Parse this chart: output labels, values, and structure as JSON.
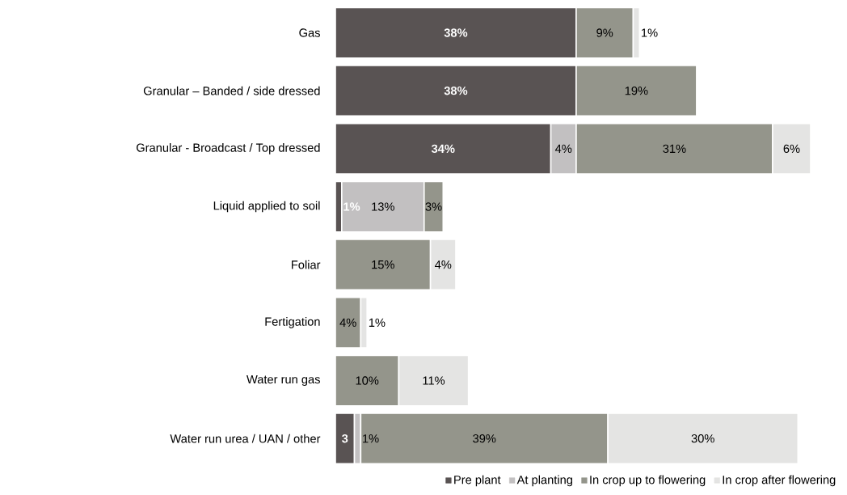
{
  "chart_data": {
    "type": "bar",
    "orientation": "horizontal",
    "stacked": true,
    "legend": "bottom",
    "categories": [
      "Gas",
      "Granular – Banded / side dressed",
      "Granular - Broadcast / Top dressed",
      "Liquid applied to soil",
      "Foliar",
      "Fertigation",
      "Water run gas",
      "Water run urea / UAN / other"
    ],
    "series": [
      {
        "name": "Pre plant",
        "color": "#595353",
        "values": [
          38,
          38,
          34,
          1,
          null,
          null,
          null,
          3
        ],
        "value_labels": [
          "38%",
          "38%",
          "34%",
          "1%",
          null,
          null,
          null,
          "3"
        ]
      },
      {
        "name": "At planting",
        "color": "#c2c0c1",
        "values": [
          null,
          null,
          4,
          13,
          null,
          null,
          null,
          1
        ],
        "value_labels": [
          null,
          null,
          "4%",
          "13%",
          null,
          null,
          null,
          "1%"
        ]
      },
      {
        "name": "In crop up to flowering",
        "color": "#94958b",
        "values": [
          9,
          19,
          31,
          3,
          15,
          4,
          10,
          39
        ],
        "value_labels": [
          "9%",
          "19%",
          "31%",
          "3%",
          "15%",
          "4%",
          "10%",
          "39%"
        ]
      },
      {
        "name": "In crop after flowering",
        "color": "#e4e4e3",
        "values": [
          1,
          null,
          6,
          null,
          4,
          1,
          11,
          30
        ],
        "value_labels": [
          "1%",
          null,
          "6%",
          null,
          "4%",
          "1%",
          "11%",
          "30%"
        ]
      }
    ]
  }
}
